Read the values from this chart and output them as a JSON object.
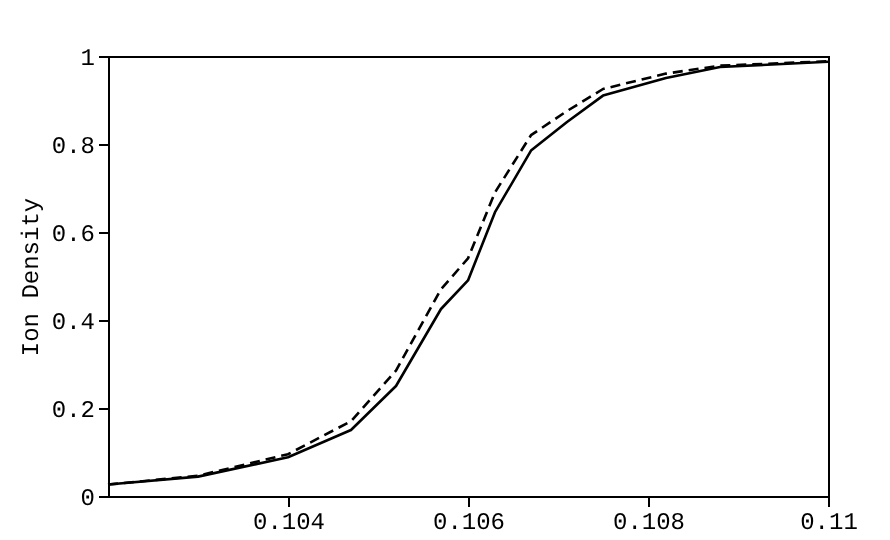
{
  "chart_data": {
    "type": "line",
    "ylabel": "Ion Density",
    "xlim": [
      0.102,
      0.11
    ],
    "xticks": [
      0.104,
      0.106,
      0.108,
      0.11
    ],
    "ylim": [
      0,
      1
    ],
    "yticks": [
      0,
      0.2,
      0.4,
      0.6,
      0.8,
      1
    ],
    "grid": false,
    "marker": "none",
    "series": [
      {
        "color": "#000000",
        "line_style": "solid",
        "x": [
          0.102,
          0.103,
          0.104,
          0.1047,
          0.1052,
          0.1057,
          0.106,
          0.1063,
          0.1067,
          0.1071,
          0.1075,
          0.1082,
          0.1088,
          0.11
        ],
        "values": [
          0.026,
          0.044,
          0.088,
          0.15,
          0.25,
          0.425,
          0.49,
          0.645,
          0.785,
          0.85,
          0.91,
          0.95,
          0.975,
          0.987
        ]
      },
      {
        "color": "#000000",
        "line_style": "dashed",
        "x": [
          0.102,
          0.103,
          0.104,
          0.1047,
          0.1052,
          0.1057,
          0.106,
          0.1063,
          0.1067,
          0.1071,
          0.1075,
          0.1082,
          0.1088,
          0.11
        ],
        "values": [
          0.026,
          0.046,
          0.095,
          0.17,
          0.285,
          0.47,
          0.54,
          0.69,
          0.82,
          0.875,
          0.925,
          0.96,
          0.978,
          0.988
        ]
      }
    ]
  }
}
